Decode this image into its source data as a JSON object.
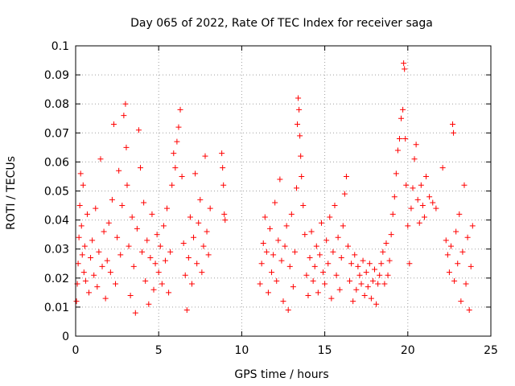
{
  "chart_data": {
    "type": "scatter",
    "title": "Day 065 of 2022, Rate Of TEC Index for receiver saga",
    "xlabel": "GPS time / hours",
    "ylabel": "ROTI / TECUs",
    "xlim": [
      0,
      25
    ],
    "ylim": [
      0,
      0.1
    ],
    "xticks": [
      0,
      5,
      10,
      15,
      20,
      25
    ],
    "xtick_labels": [
      "0",
      "5",
      "10",
      "15",
      "20",
      "25"
    ],
    "yticks": [
      0,
      0.01,
      0.02,
      0.03,
      0.04,
      0.05,
      0.06,
      0.07,
      0.08,
      0.09,
      0.1
    ],
    "ytick_labels": [
      "0",
      "0.01",
      "0.02",
      "0.03",
      "0.04",
      "0.05",
      "0.06",
      "0.07",
      "0.08",
      "0.09",
      "0.1"
    ],
    "grid": true,
    "legend": "none",
    "marker": "+",
    "color": "#ff0000",
    "series": [
      {
        "points": [
          [
            0.05,
            0.012
          ],
          [
            0.1,
            0.018
          ],
          [
            0.15,
            0.025
          ],
          [
            0.2,
            0.034
          ],
          [
            0.25,
            0.045
          ],
          [
            0.3,
            0.056
          ],
          [
            0.35,
            0.038
          ],
          [
            0.4,
            0.028
          ],
          [
            0.45,
            0.052
          ],
          [
            0.5,
            0.022
          ],
          [
            0.55,
            0.031
          ],
          [
            0.6,
            0.019
          ],
          [
            0.7,
            0.042
          ],
          [
            0.8,
            0.015
          ],
          [
            0.9,
            0.027
          ],
          [
            1.0,
            0.033
          ],
          [
            1.1,
            0.021
          ],
          [
            1.2,
            0.044
          ],
          [
            1.3,
            0.017
          ],
          [
            1.4,
            0.029
          ],
          [
            1.5,
            0.061
          ],
          [
            1.6,
            0.024
          ],
          [
            1.7,
            0.036
          ],
          [
            1.8,
            0.013
          ],
          [
            1.9,
            0.026
          ],
          [
            2.0,
            0.039
          ],
          [
            2.1,
            0.022
          ],
          [
            2.2,
            0.047
          ],
          [
            2.3,
            0.073
          ],
          [
            2.4,
            0.018
          ],
          [
            2.5,
            0.034
          ],
          [
            2.6,
            0.057
          ],
          [
            2.7,
            0.028
          ],
          [
            2.8,
            0.045
          ],
          [
            2.9,
            0.076
          ],
          [
            3.0,
            0.08
          ],
          [
            3.05,
            0.065
          ],
          [
            3.1,
            0.052
          ],
          [
            3.2,
            0.031
          ],
          [
            3.3,
            0.014
          ],
          [
            3.4,
            0.041
          ],
          [
            3.5,
            0.024
          ],
          [
            3.6,
            0.008
          ],
          [
            3.7,
            0.037
          ],
          [
            3.8,
            0.071
          ],
          [
            3.9,
            0.058
          ],
          [
            4.0,
            0.029
          ],
          [
            4.1,
            0.046
          ],
          [
            4.2,
            0.019
          ],
          [
            4.3,
            0.033
          ],
          [
            4.4,
            0.011
          ],
          [
            4.5,
            0.027
          ],
          [
            4.6,
            0.042
          ],
          [
            4.7,
            0.016
          ],
          [
            4.8,
            0.025
          ],
          [
            4.9,
            0.035
          ],
          [
            5.0,
            0.022
          ],
          [
            5.1,
            0.031
          ],
          [
            5.2,
            0.018
          ],
          [
            5.3,
            0.038
          ],
          [
            5.4,
            0.026
          ],
          [
            5.5,
            0.044
          ],
          [
            5.6,
            0.015
          ],
          [
            5.7,
            0.029
          ],
          [
            5.8,
            0.052
          ],
          [
            5.9,
            0.063
          ],
          [
            6.0,
            0.058
          ],
          [
            6.1,
            0.067
          ],
          [
            6.2,
            0.072
          ],
          [
            6.3,
            0.078
          ],
          [
            6.4,
            0.055
          ],
          [
            6.5,
            0.032
          ],
          [
            6.6,
            0.021
          ],
          [
            6.7,
            0.009
          ],
          [
            6.8,
            0.027
          ],
          [
            6.9,
            0.041
          ],
          [
            7.0,
            0.018
          ],
          [
            7.1,
            0.034
          ],
          [
            7.2,
            0.056
          ],
          [
            7.3,
            0.025
          ],
          [
            7.4,
            0.039
          ],
          [
            7.5,
            0.047
          ],
          [
            7.6,
            0.022
          ],
          [
            7.7,
            0.031
          ],
          [
            7.8,
            0.062
          ],
          [
            7.9,
            0.036
          ],
          [
            8.0,
            0.028
          ],
          [
            8.1,
            0.044
          ],
          [
            8.8,
            0.063
          ],
          [
            8.85,
            0.058
          ],
          [
            8.9,
            0.052
          ],
          [
            8.95,
            0.042
          ],
          [
            9.0,
            0.04
          ],
          [
            11.1,
            0.018
          ],
          [
            11.2,
            0.025
          ],
          [
            11.3,
            0.032
          ],
          [
            11.4,
            0.041
          ],
          [
            11.5,
            0.029
          ],
          [
            11.6,
            0.015
          ],
          [
            11.7,
            0.037
          ],
          [
            11.8,
            0.022
          ],
          [
            11.9,
            0.028
          ],
          [
            12.0,
            0.046
          ],
          [
            12.1,
            0.019
          ],
          [
            12.2,
            0.033
          ],
          [
            12.3,
            0.054
          ],
          [
            12.4,
            0.026
          ],
          [
            12.5,
            0.012
          ],
          [
            12.6,
            0.031
          ],
          [
            12.7,
            0.038
          ],
          [
            12.8,
            0.009
          ],
          [
            12.9,
            0.024
          ],
          [
            13.0,
            0.042
          ],
          [
            13.1,
            0.017
          ],
          [
            13.2,
            0.029
          ],
          [
            13.3,
            0.051
          ],
          [
            13.35,
            0.073
          ],
          [
            13.4,
            0.082
          ],
          [
            13.45,
            0.078
          ],
          [
            13.5,
            0.069
          ],
          [
            13.55,
            0.062
          ],
          [
            13.6,
            0.055
          ],
          [
            13.7,
            0.045
          ],
          [
            13.8,
            0.035
          ],
          [
            13.9,
            0.021
          ],
          [
            14.0,
            0.014
          ],
          [
            14.1,
            0.027
          ],
          [
            14.2,
            0.036
          ],
          [
            14.3,
            0.019
          ],
          [
            14.4,
            0.024
          ],
          [
            14.5,
            0.031
          ],
          [
            14.6,
            0.015
          ],
          [
            14.7,
            0.028
          ],
          [
            14.8,
            0.039
          ],
          [
            14.9,
            0.022
          ],
          [
            15.0,
            0.018
          ],
          [
            15.1,
            0.033
          ],
          [
            15.2,
            0.025
          ],
          [
            15.3,
            0.041
          ],
          [
            15.4,
            0.013
          ],
          [
            15.5,
            0.029
          ],
          [
            15.6,
            0.045
          ],
          [
            15.7,
            0.021
          ],
          [
            15.8,
            0.034
          ],
          [
            15.9,
            0.016
          ],
          [
            16.0,
            0.027
          ],
          [
            16.1,
            0.038
          ],
          [
            16.2,
            0.049
          ],
          [
            16.3,
            0.055
          ],
          [
            16.4,
            0.031
          ],
          [
            16.5,
            0.019
          ],
          [
            16.6,
            0.025
          ],
          [
            16.7,
            0.012
          ],
          [
            16.8,
            0.028
          ],
          [
            16.9,
            0.016
          ],
          [
            17.0,
            0.024
          ],
          [
            17.1,
            0.021
          ],
          [
            17.2,
            0.018
          ],
          [
            17.3,
            0.026
          ],
          [
            17.4,
            0.014
          ],
          [
            17.5,
            0.022
          ],
          [
            17.6,
            0.017
          ],
          [
            17.7,
            0.025
          ],
          [
            17.8,
            0.013
          ],
          [
            17.9,
            0.019
          ],
          [
            18.0,
            0.023
          ],
          [
            18.1,
            0.011
          ],
          [
            18.2,
            0.018
          ],
          [
            18.3,
            0.021
          ],
          [
            18.4,
            0.025
          ],
          [
            18.5,
            0.029
          ],
          [
            18.6,
            0.018
          ],
          [
            18.7,
            0.032
          ],
          [
            18.8,
            0.021
          ],
          [
            18.9,
            0.026
          ],
          [
            19.0,
            0.035
          ],
          [
            19.1,
            0.042
          ],
          [
            19.2,
            0.048
          ],
          [
            19.3,
            0.056
          ],
          [
            19.4,
            0.064
          ],
          [
            19.5,
            0.068
          ],
          [
            19.6,
            0.075
          ],
          [
            19.7,
            0.078
          ],
          [
            19.75,
            0.094
          ],
          [
            19.8,
            0.092
          ],
          [
            19.85,
            0.068
          ],
          [
            19.9,
            0.052
          ],
          [
            20.0,
            0.038
          ],
          [
            20.1,
            0.025
          ],
          [
            20.2,
            0.044
          ],
          [
            20.3,
            0.051
          ],
          [
            20.4,
            0.061
          ],
          [
            20.5,
            0.066
          ],
          [
            20.6,
            0.047
          ],
          [
            20.7,
            0.039
          ],
          [
            20.8,
            0.052
          ],
          [
            20.9,
            0.045
          ],
          [
            21.0,
            0.041
          ],
          [
            21.1,
            0.055
          ],
          [
            21.3,
            0.048
          ],
          [
            21.5,
            0.046
          ],
          [
            21.7,
            0.044
          ],
          [
            22.1,
            0.058
          ],
          [
            22.3,
            0.033
          ],
          [
            22.4,
            0.028
          ],
          [
            22.5,
            0.022
          ],
          [
            22.6,
            0.031
          ],
          [
            22.7,
            0.073
          ],
          [
            22.75,
            0.07
          ],
          [
            22.8,
            0.019
          ],
          [
            22.9,
            0.036
          ],
          [
            23.0,
            0.025
          ],
          [
            23.1,
            0.042
          ],
          [
            23.2,
            0.012
          ],
          [
            23.3,
            0.029
          ],
          [
            23.4,
            0.052
          ],
          [
            23.5,
            0.018
          ],
          [
            23.6,
            0.034
          ],
          [
            23.7,
            0.009
          ],
          [
            23.8,
            0.024
          ],
          [
            23.9,
            0.038
          ]
        ]
      }
    ]
  }
}
